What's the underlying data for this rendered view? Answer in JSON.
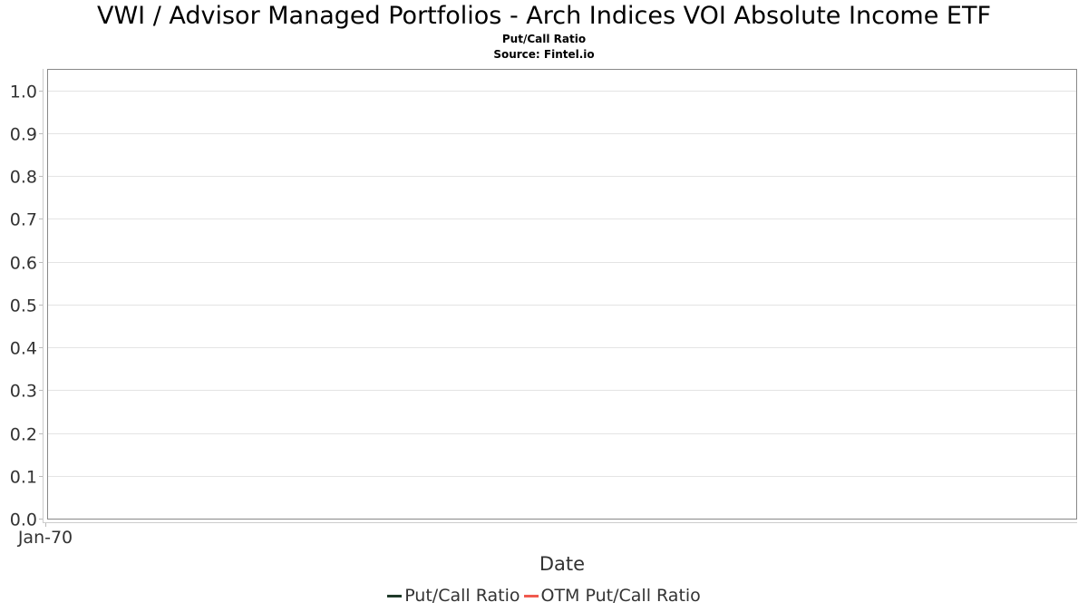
{
  "chart_data": {
    "type": "line",
    "title": "VWI / Advisor Managed Portfolios - Arch Indices VOI Absolute Income ETF",
    "subtitle": "Put/Call Ratio",
    "source": "Source: Fintel.io",
    "xlabel": "Date",
    "ylabel": "",
    "x_ticks": [
      "Jan-70"
    ],
    "y_ticks": [
      "0.0",
      "0.1",
      "0.2",
      "0.3",
      "0.4",
      "0.5",
      "0.6",
      "0.7",
      "0.8",
      "0.9",
      "1.0"
    ],
    "ylim": [
      0,
      1.05
    ],
    "grid": true,
    "legend_position": "bottom",
    "series": [
      {
        "name": "Put/Call Ratio",
        "color": "#1f3a2a",
        "x": [],
        "y": []
      },
      {
        "name": "OTM Put/Call Ratio",
        "color": "#f05a4f",
        "x": [],
        "y": []
      }
    ]
  }
}
